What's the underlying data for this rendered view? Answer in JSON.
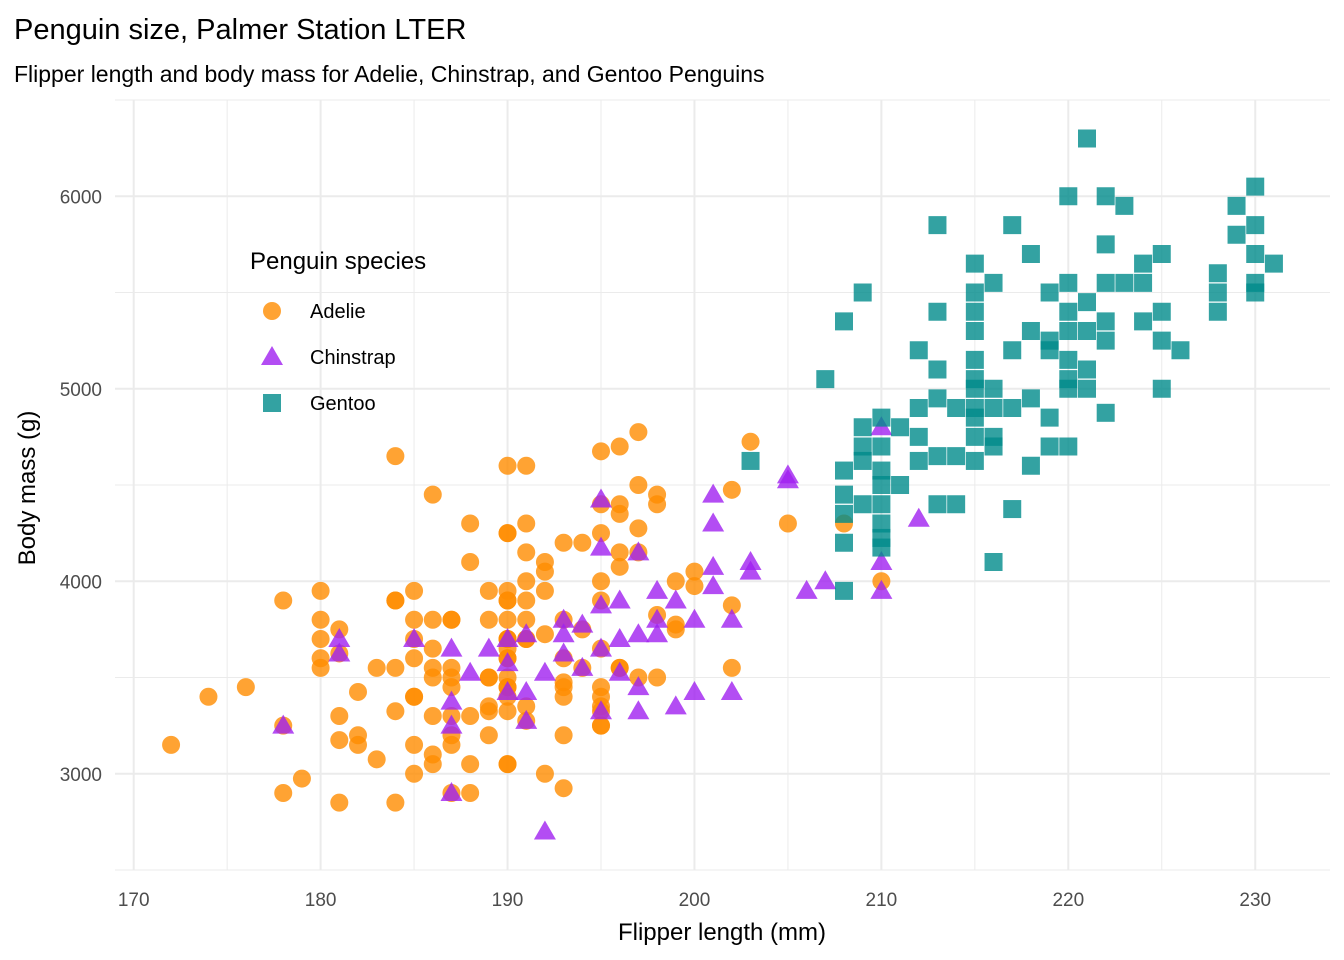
{
  "chart_data": {
    "type": "scatter",
    "title": "Penguin size, Palmer Station LTER",
    "subtitle": "Flipper length and body mass for Adelie, Chinstrap, and Gentoo Penguins",
    "xlabel": "Flipper length (mm)",
    "ylabel": "Body mass (g)",
    "xlim": [
      169,
      234
    ],
    "ylim": [
      2500,
      6500
    ],
    "xticks": [
      170,
      180,
      190,
      200,
      210,
      220,
      230
    ],
    "yticks": [
      3000,
      4000,
      5000,
      6000
    ],
    "grid": true,
    "legend": {
      "title": "Penguin species",
      "placement": "top-left"
    },
    "series": [
      {
        "name": "Adelie",
        "color": "#FF8C00",
        "shape": "circle",
        "points": [
          [
            181,
            3750
          ],
          [
            186,
            3800
          ],
          [
            195,
            3250
          ],
          [
            193,
            3450
          ],
          [
            190,
            3650
          ],
          [
            181,
            3625
          ],
          [
            195,
            4675
          ],
          [
            193,
            3475
          ],
          [
            190,
            4250
          ],
          [
            186,
            3300
          ],
          [
            180,
            3700
          ],
          [
            182,
            3200
          ],
          [
            191,
            3800
          ],
          [
            198,
            4400
          ],
          [
            185,
            3700
          ],
          [
            195,
            3450
          ],
          [
            197,
            4500
          ],
          [
            184,
            3325
          ],
          [
            194,
            4200
          ],
          [
            174,
            3400
          ],
          [
            180,
            3600
          ],
          [
            189,
            3800
          ],
          [
            185,
            3950
          ],
          [
            180,
            3800
          ],
          [
            187,
            3800
          ],
          [
            183,
            3550
          ],
          [
            187,
            3200
          ],
          [
            172,
            3150
          ],
          [
            180,
            3950
          ],
          [
            178,
            3250
          ],
          [
            178,
            3900
          ],
          [
            188,
            3300
          ],
          [
            184,
            3900
          ],
          [
            195,
            3325
          ],
          [
            196,
            4150
          ],
          [
            190,
            3950
          ],
          [
            180,
            3550
          ],
          [
            181,
            3300
          ],
          [
            184,
            4650
          ],
          [
            182,
            3150
          ],
          [
            195,
            3900
          ],
          [
            186,
            3100
          ],
          [
            196,
            4400
          ],
          [
            185,
            3000
          ],
          [
            190,
            4600
          ],
          [
            182,
            3425
          ],
          [
            179,
            2975
          ],
          [
            190,
            3450
          ],
          [
            191,
            4150
          ],
          [
            186,
            3500
          ],
          [
            188,
            4300
          ],
          [
            190,
            3450
          ],
          [
            200,
            4050
          ],
          [
            187,
            2900
          ],
          [
            191,
            3700
          ],
          [
            186,
            3550
          ],
          [
            193,
            3800
          ],
          [
            181,
            2850
          ],
          [
            194,
            3750
          ],
          [
            185,
            3150
          ],
          [
            195,
            4400
          ],
          [
            185,
            3600
          ],
          [
            192,
            4050
          ],
          [
            184,
            2850
          ],
          [
            192,
            3950
          ],
          [
            195,
            3350
          ],
          [
            188,
            4100
          ],
          [
            190,
            3050
          ],
          [
            198,
            4450
          ],
          [
            190,
            3600
          ],
          [
            190,
            3900
          ],
          [
            196,
            3550
          ],
          [
            197,
            4150
          ],
          [
            190,
            3700
          ],
          [
            195,
            4250
          ],
          [
            191,
            3700
          ],
          [
            184,
            3900
          ],
          [
            187,
            3550
          ],
          [
            195,
            4000
          ],
          [
            189,
            3200
          ],
          [
            196,
            4700
          ],
          [
            187,
            3800
          ],
          [
            193,
            4200
          ],
          [
            191,
            3350
          ],
          [
            194,
            3550
          ],
          [
            190,
            3800
          ],
          [
            189,
            3500
          ],
          [
            189,
            3950
          ],
          [
            190,
            3600
          ],
          [
            202,
            3550
          ],
          [
            205,
            4300
          ],
          [
            185,
            3400
          ],
          [
            186,
            4450
          ],
          [
            187,
            3300
          ],
          [
            208,
            4300
          ],
          [
            190,
            3700
          ],
          [
            196,
            4350
          ],
          [
            178,
            2900
          ],
          [
            192,
            4100
          ],
          [
            192,
            3725
          ],
          [
            203,
            4725
          ],
          [
            183,
            3075
          ],
          [
            190,
            4250
          ],
          [
            193,
            2925
          ],
          [
            184,
            3550
          ],
          [
            199,
            3750
          ],
          [
            190,
            3900
          ],
          [
            181,
            3175
          ],
          [
            197,
            4775
          ],
          [
            198,
            3825
          ],
          [
            191,
            4600
          ],
          [
            193,
            3200
          ],
          [
            197,
            4275
          ],
          [
            191,
            3900
          ],
          [
            196,
            4075
          ],
          [
            188,
            2900
          ],
          [
            199,
            3775
          ],
          [
            189,
            3350
          ],
          [
            189,
            3325
          ],
          [
            187,
            3150
          ],
          [
            198,
            3500
          ],
          [
            176,
            3450
          ],
          [
            202,
            3875
          ],
          [
            186,
            3050
          ],
          [
            199,
            4000
          ],
          [
            191,
            3275
          ],
          [
            191,
            4300
          ],
          [
            190,
            3050
          ],
          [
            191,
            4000
          ],
          [
            190,
            3325
          ],
          [
            189,
            3500
          ],
          [
            190,
            3500
          ],
          [
            202,
            4475
          ],
          [
            185,
            3800
          ],
          [
            187,
            3500
          ],
          [
            190,
            3400
          ],
          [
            193,
            3400
          ],
          [
            192,
            3000
          ],
          [
            195,
            3250
          ],
          [
            195,
            3650
          ],
          [
            197,
            3500
          ],
          [
            187,
            3450
          ],
          [
            185,
            3400
          ],
          [
            186,
            3650
          ],
          [
            190,
            3700
          ],
          [
            195,
            3400
          ],
          [
            210,
            4000
          ],
          [
            188,
            3050
          ],
          [
            200,
            3975
          ],
          [
            193,
            3600
          ],
          [
            196,
            3550
          ]
        ]
      },
      {
        "name": "Chinstrap",
        "color": "#A020F0",
        "shape": "triangle",
        "points": [
          [
            178,
            3250
          ],
          [
            181,
            3700
          ],
          [
            181,
            3625
          ],
          [
            185,
            3700
          ],
          [
            187,
            3650
          ],
          [
            187,
            3375
          ],
          [
            187,
            3250
          ],
          [
            187,
            2900
          ],
          [
            188,
            3525
          ],
          [
            189,
            3650
          ],
          [
            190,
            3700
          ],
          [
            190,
            3575
          ],
          [
            190,
            3425
          ],
          [
            191,
            3725
          ],
          [
            191,
            3425
          ],
          [
            191,
            3275
          ],
          [
            192,
            3525
          ],
          [
            192,
            2700
          ],
          [
            193,
            3800
          ],
          [
            193,
            3625
          ],
          [
            193,
            3725
          ],
          [
            194,
            3775
          ],
          [
            194,
            3550
          ],
          [
            195,
            4425
          ],
          [
            195,
            4175
          ],
          [
            195,
            3875
          ],
          [
            195,
            3650
          ],
          [
            195,
            3325
          ],
          [
            196,
            3900
          ],
          [
            196,
            3700
          ],
          [
            196,
            3525
          ],
          [
            197,
            3725
          ],
          [
            197,
            3450
          ],
          [
            197,
            3325
          ],
          [
            197,
            4150
          ],
          [
            198,
            3950
          ],
          [
            198,
            3725
          ],
          [
            198,
            3800
          ],
          [
            199,
            3900
          ],
          [
            199,
            3350
          ],
          [
            200,
            3800
          ],
          [
            200,
            3425
          ],
          [
            201,
            4450
          ],
          [
            201,
            4300
          ],
          [
            201,
            4075
          ],
          [
            201,
            3975
          ],
          [
            202,
            3800
          ],
          [
            202,
            3425
          ],
          [
            203,
            4100
          ],
          [
            203,
            4050
          ],
          [
            205,
            4550
          ],
          [
            205,
            4525
          ],
          [
            206,
            3950
          ],
          [
            207,
            4000
          ],
          [
            210,
            4800
          ],
          [
            210,
            4100
          ],
          [
            210,
            3950
          ],
          [
            212,
            4325
          ]
        ]
      },
      {
        "name": "Gentoo",
        "color": "#008B8B",
        "shape": "square",
        "points": [
          [
            203,
            4625
          ],
          [
            207,
            5050
          ],
          [
            208,
            3950
          ],
          [
            208,
            4200
          ],
          [
            208,
            4350
          ],
          [
            208,
            4450
          ],
          [
            208,
            4575
          ],
          [
            208,
            5350
          ],
          [
            209,
            5500
          ],
          [
            209,
            4800
          ],
          [
            209,
            4700
          ],
          [
            209,
            4625
          ],
          [
            209,
            4400
          ],
          [
            210,
            4850
          ],
          [
            210,
            4700
          ],
          [
            210,
            4575
          ],
          [
            210,
            4500
          ],
          [
            210,
            4400
          ],
          [
            210,
            4300
          ],
          [
            210,
            4225
          ],
          [
            210,
            4175
          ],
          [
            211,
            4500
          ],
          [
            211,
            4800
          ],
          [
            212,
            4900
          ],
          [
            212,
            4750
          ],
          [
            212,
            4625
          ],
          [
            212,
            5200
          ],
          [
            213,
            5850
          ],
          [
            213,
            5400
          ],
          [
            213,
            5100
          ],
          [
            213,
            4950
          ],
          [
            213,
            4650
          ],
          [
            213,
            4400
          ],
          [
            214,
            4900
          ],
          [
            214,
            4650
          ],
          [
            214,
            4400
          ],
          [
            215,
            5650
          ],
          [
            215,
            5500
          ],
          [
            215,
            5400
          ],
          [
            215,
            5300
          ],
          [
            215,
            5150
          ],
          [
            215,
            5050
          ],
          [
            215,
            5000
          ],
          [
            215,
            4900
          ],
          [
            215,
            4850
          ],
          [
            215,
            4750
          ],
          [
            215,
            4625
          ],
          [
            216,
            5550
          ],
          [
            216,
            5000
          ],
          [
            216,
            4900
          ],
          [
            216,
            4750
          ],
          [
            216,
            4700
          ],
          [
            216,
            4100
          ],
          [
            217,
            5850
          ],
          [
            217,
            5200
          ],
          [
            217,
            4900
          ],
          [
            217,
            4375
          ],
          [
            218,
            5700
          ],
          [
            218,
            5300
          ],
          [
            218,
            4950
          ],
          [
            218,
            4600
          ],
          [
            219,
            5500
          ],
          [
            219,
            5250
          ],
          [
            219,
            5200
          ],
          [
            219,
            4850
          ],
          [
            219,
            4700
          ],
          [
            220,
            6000
          ],
          [
            220,
            5550
          ],
          [
            220,
            5400
          ],
          [
            220,
            5300
          ],
          [
            220,
            5150
          ],
          [
            220,
            5050
          ],
          [
            220,
            5000
          ],
          [
            220,
            4700
          ],
          [
            221,
            6300
          ],
          [
            221,
            5450
          ],
          [
            221,
            5300
          ],
          [
            221,
            5100
          ],
          [
            221,
            5000
          ],
          [
            222,
            6000
          ],
          [
            222,
            5750
          ],
          [
            222,
            5550
          ],
          [
            222,
            5350
          ],
          [
            222,
            5250
          ],
          [
            222,
            4875
          ],
          [
            223,
            5950
          ],
          [
            223,
            5550
          ],
          [
            224,
            5550
          ],
          [
            224,
            5650
          ],
          [
            224,
            5350
          ],
          [
            225,
            5700
          ],
          [
            225,
            5400
          ],
          [
            225,
            5250
          ],
          [
            225,
            5000
          ],
          [
            226,
            5200
          ],
          [
            228,
            5600
          ],
          [
            228,
            5500
          ],
          [
            228,
            5400
          ],
          [
            229,
            5950
          ],
          [
            229,
            5800
          ],
          [
            230,
            6050
          ],
          [
            230,
            5850
          ],
          [
            230,
            5700
          ],
          [
            230,
            5550
          ],
          [
            230,
            5500
          ],
          [
            231,
            5650
          ]
        ]
      }
    ]
  }
}
